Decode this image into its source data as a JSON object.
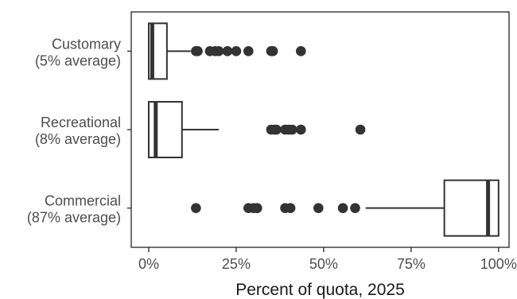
{
  "chart_data": {
    "type": "box",
    "orientation": "horizontal",
    "xlabel": "Percent of quota, 2025",
    "xlim": [
      -5,
      103
    ],
    "x_ticks": [
      0,
      25,
      50,
      75,
      100
    ],
    "x_tick_labels": [
      "0%",
      "25%",
      "50%",
      "75%",
      "100%"
    ],
    "grid": false,
    "colors": {
      "box_stroke": "#333333",
      "box_fill": "#ffffff",
      "points": "#333333",
      "frame": "#333333"
    },
    "categories": [
      {
        "name": "Customary",
        "label_lines": [
          "Customary",
          "(5% average)"
        ],
        "q1": 0,
        "median": 1,
        "q3": 5.2,
        "whisker_low": 0,
        "whisker_high": 12,
        "outliers": [
          13.5,
          14,
          17.5,
          19,
          20,
          22.5,
          25,
          28.5,
          35,
          35.5,
          43.5
        ]
      },
      {
        "name": "Recreational",
        "label_lines": [
          "Recreational",
          "(8% average)"
        ],
        "q1": 0,
        "median": 2,
        "q3": 9.5,
        "whisker_low": 0,
        "whisker_high": 20,
        "outliers": [
          35,
          36,
          36.5,
          39,
          40,
          41,
          43.5,
          60.5
        ]
      },
      {
        "name": "Commercial",
        "label_lines": [
          "Commercial",
          "(87% average)"
        ],
        "q1": 84.5,
        "median": 97,
        "q3": 100,
        "whisker_low": 62,
        "whisker_high": 100,
        "outliers": [
          13.5,
          28.5,
          30,
          31,
          39,
          40.5,
          48.5,
          55.5,
          59
        ]
      }
    ]
  }
}
